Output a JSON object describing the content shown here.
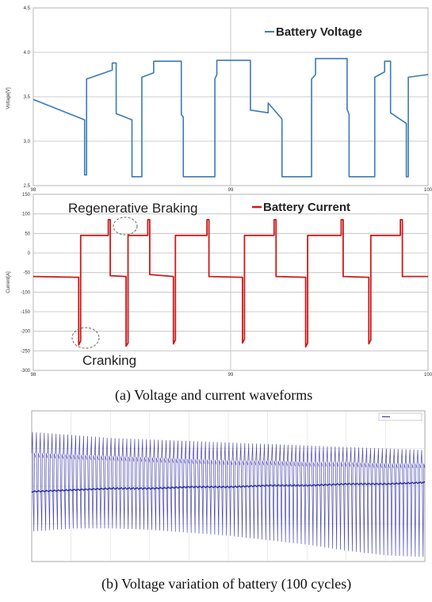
{
  "chart_data": [
    {
      "type": "line",
      "title": "",
      "xlabel": "",
      "ylabel": "Voltage[V]",
      "xlim": [
        98,
        100
      ],
      "ylim": [
        2.5,
        4.5
      ],
      "xticks": [
        "98",
        "99",
        "100"
      ],
      "yticks": [
        "2.5",
        "3.0",
        "3.5",
        "4.0",
        "4.5"
      ],
      "grid": true,
      "legend": "top-right",
      "series": [
        {
          "name": "Battery Voltage",
          "color": "#3a7ab8",
          "x": [
            98.0,
            98.26,
            98.26,
            98.27,
            98.27,
            98.4,
            98.4,
            98.42,
            98.42,
            98.5,
            98.5,
            98.55,
            98.55,
            98.61,
            98.61,
            98.75,
            98.75,
            98.76,
            98.76,
            98.92,
            98.92,
            98.93,
            98.93,
            99.1,
            99.1,
            99.19,
            99.19,
            99.26,
            99.26,
            99.41,
            99.41,
            99.43,
            99.43,
            99.59,
            99.59,
            99.6,
            99.6,
            99.73,
            99.73,
            99.78,
            99.78,
            99.81,
            99.81,
            99.89,
            99.89,
            99.9,
            99.9,
            100.0
          ],
          "y": [
            3.47,
            3.24,
            2.62,
            2.62,
            3.7,
            3.8,
            3.88,
            3.88,
            3.31,
            3.24,
            2.6,
            2.6,
            3.72,
            3.77,
            3.9,
            3.9,
            3.3,
            3.27,
            2.6,
            2.6,
            3.7,
            3.75,
            3.91,
            3.91,
            3.35,
            3.32,
            3.43,
            3.25,
            2.6,
            2.6,
            3.7,
            3.75,
            3.93,
            3.93,
            3.36,
            3.3,
            2.6,
            2.6,
            3.72,
            3.78,
            3.9,
            3.9,
            3.32,
            3.2,
            2.6,
            2.6,
            3.72,
            3.75
          ]
        }
      ]
    },
    {
      "type": "line",
      "title": "",
      "xlabel": "",
      "ylabel": "Current[A]",
      "xlim": [
        98,
        100
      ],
      "ylim": [
        -300,
        150
      ],
      "xticks": [
        "98",
        "99",
        "100"
      ],
      "yticks": [
        "-300",
        "-250",
        "-200",
        "-150",
        "-100",
        "-50",
        "0",
        "50",
        "100",
        "150"
      ],
      "grid": true,
      "legend": "top-right",
      "annotations": [
        "Regenerative Braking",
        "Cranking"
      ],
      "series": [
        {
          "name": "Battery Current",
          "color": "#cc1a1a",
          "x": [
            98.0,
            98.23,
            98.23,
            98.24,
            98.24,
            98.38,
            98.38,
            98.39,
            98.39,
            98.47,
            98.47,
            98.48,
            98.48,
            98.58,
            98.58,
            98.59,
            98.59,
            98.71,
            98.71,
            98.72,
            98.72,
            98.88,
            98.88,
            98.89,
            98.89,
            99.06,
            99.06,
            99.07,
            99.07,
            99.22,
            99.22,
            99.23,
            99.23,
            99.38,
            99.38,
            99.39,
            99.39,
            99.56,
            99.56,
            99.57,
            99.57,
            99.7,
            99.7,
            99.71,
            99.71,
            99.86,
            99.86,
            99.87,
            99.87,
            100.0
          ],
          "y": [
            -60,
            -62,
            -235,
            -225,
            45,
            45,
            85,
            85,
            -58,
            -60,
            -238,
            -230,
            45,
            45,
            85,
            85,
            -55,
            -60,
            -232,
            -222,
            45,
            45,
            85,
            85,
            -60,
            -62,
            -230,
            -220,
            45,
            45,
            85,
            85,
            -60,
            -62,
            -240,
            -230,
            45,
            45,
            85,
            85,
            -60,
            -62,
            -232,
            -222,
            45,
            45,
            85,
            85,
            -60,
            -60
          ]
        }
      ]
    },
    {
      "type": "line",
      "title": "",
      "xlabel": "",
      "ylabel": "",
      "legend": "top-right",
      "cycles": 100,
      "envelope": {
        "x": [
          0,
          10,
          20,
          30,
          40,
          50,
          60,
          70,
          80,
          90,
          100
        ],
        "upper": [
          0.86,
          0.84,
          0.82,
          0.81,
          0.8,
          0.79,
          0.78,
          0.77,
          0.76,
          0.75,
          0.74
        ],
        "lower": [
          0.2,
          0.22,
          0.22,
          0.21,
          0.19,
          0.17,
          0.14,
          0.11,
          0.07,
          0.04,
          0.03
        ],
        "band_high": [
          0.72,
          0.71,
          0.7,
          0.69,
          0.68,
          0.67,
          0.67,
          0.66,
          0.66,
          0.65,
          0.65
        ],
        "band_low": [
          0.46,
          0.47,
          0.48,
          0.48,
          0.49,
          0.49,
          0.5,
          0.5,
          0.51,
          0.51,
          0.52
        ]
      },
      "series": [
        {
          "color": "#2a2aa0"
        }
      ]
    }
  ],
  "captions": {
    "a": "(a)    Voltage and current waveforms",
    "b": "(b)    Voltage variation of battery (100 cycles)"
  },
  "labels": {
    "legend_a": "Battery Voltage",
    "legend_b": "Battery Current",
    "annot_regen": "Regenerative Braking",
    "annot_crank": "Cranking"
  }
}
